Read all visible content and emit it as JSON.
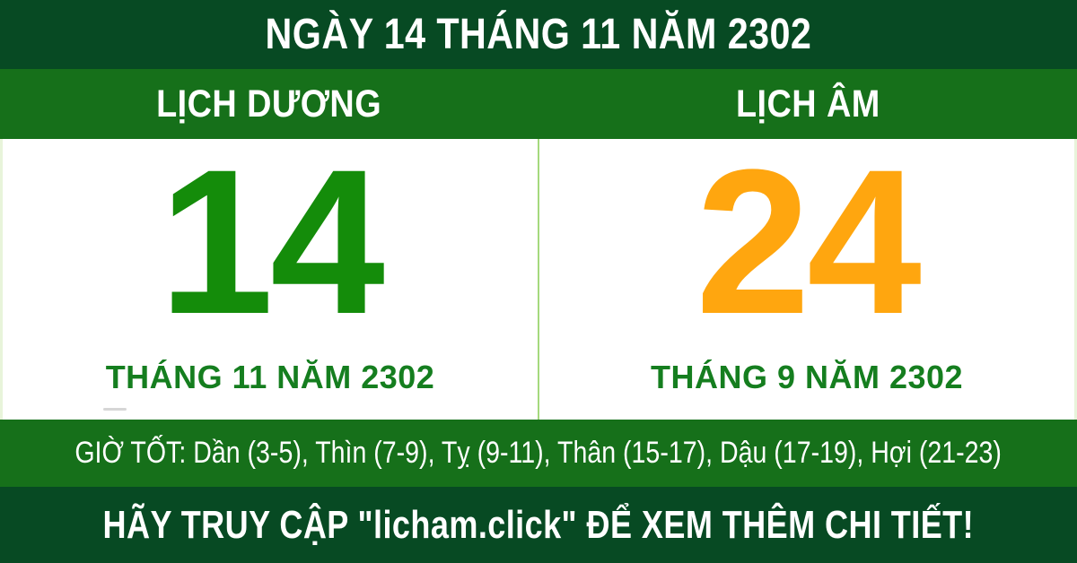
{
  "header": {
    "title": "NGÀY 14 THÁNG 11 NĂM 2302"
  },
  "calendars": {
    "solar": {
      "label": "LỊCH DƯƠNG",
      "day": "14",
      "month_year": "THÁNG 11 NĂM 2302"
    },
    "lunar": {
      "label": "LỊCH ÂM",
      "day": "24",
      "month_year": "THÁNG 9 NĂM 2302"
    }
  },
  "good_hours": {
    "text": "GIỜ TỐT: Dần (3-5), Thìn (7-9), Tỵ (9-11), Thân (15-17), Dậu (17-19), Hợi (21-23)"
  },
  "footer": {
    "text": "HÃY TRUY CẬP \"licham.click\" ĐỂ XEM THÊM CHI TIẾT!",
    "site": "licham.click"
  },
  "colors": {
    "dark_bar_green": "#074a23",
    "band_green": "#16701a",
    "solar_day_green": "#148c0a",
    "lunar_day_orange": "#ffa60f",
    "month_text_green": "#157e1f",
    "divider_light_green": "#a5d97d",
    "edge_border_pale_green": "#e8f4da",
    "content_background": "#ffffff",
    "text_white": "#ffffff"
  }
}
